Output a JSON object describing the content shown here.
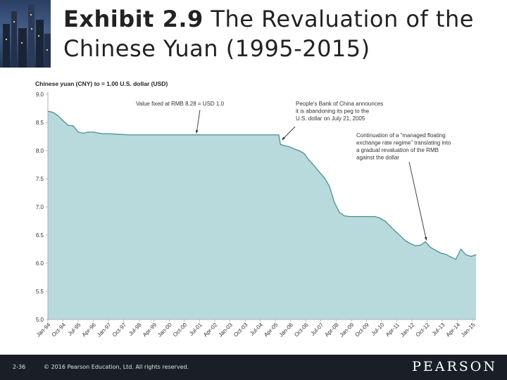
{
  "slide": {
    "title_bold": "Exhibit 2.9",
    "title_rest": "The Revaluation of the Chinese Yuan (1995-2015)",
    "page_number": "2-36",
    "copyright": "© 2016 Pearson Education, Ltd. All rights reserved.",
    "brand": "PEARSON"
  },
  "chart_data": {
    "type": "area",
    "ylabel": "Chinese yuan (CNY) to = 1.00 U.S. dollar (USD)",
    "ylim": [
      5.0,
      9.0
    ],
    "yticks": [
      "9.0",
      "8.5",
      "8.0",
      "7.5",
      "7.0",
      "6.5",
      "6.0",
      "5.5",
      "5.0"
    ],
    "grid": false,
    "fill_color": "#b8dadd",
    "line_color": "#4d8f96",
    "xlabels": [
      "Jan-94",
      "Oct-94",
      "Jul-95",
      "Apr-96",
      "Jan-97",
      "Oct-97",
      "Jul-98",
      "Apr-99",
      "Jan-00",
      "Oct-00",
      "Jul-01",
      "Apr-02",
      "Jan-03",
      "Oct-03",
      "Jul-04",
      "Apr-05",
      "Jan-06",
      "Oct-06",
      "Jul-07",
      "Apr-08",
      "Jan-09",
      "Oct-09",
      "Jul-10",
      "Apr-11",
      "Jan-12",
      "Oct-12",
      "Jul-13",
      "Apr-14",
      "Jan-15"
    ],
    "series": [
      {
        "x": [
          "Jan-94",
          "Apr-94",
          "Jul-94",
          "Oct-94",
          "Jan-95",
          "Apr-95",
          "Jul-95",
          "Oct-95",
          "Jan-96",
          "Apr-96",
          "Jul-96",
          "Oct-96",
          "Jan-97",
          "Jul-97",
          "Jan-98",
          "Jul-98",
          "Jan-99",
          "Jul-99",
          "Jan-00",
          "Jul-00",
          "Jan-01",
          "Jul-01",
          "Jan-02",
          "Jul-02",
          "Jan-03",
          "Jul-03",
          "Jan-04",
          "Jul-04",
          "Jan-05",
          "Jun-05",
          "Jul-05",
          "Sep-05",
          "Dec-05",
          "Mar-06",
          "Jun-06",
          "Sep-06",
          "Dec-06",
          "Mar-07",
          "Jun-07",
          "Sep-07",
          "Dec-07",
          "Mar-08",
          "Jun-08",
          "Sep-08",
          "Dec-08",
          "Mar-09",
          "Jun-09",
          "Sep-09",
          "Dec-09",
          "Mar-10",
          "Jun-10",
          "Sep-10",
          "Dec-10",
          "Mar-11",
          "Jun-11",
          "Sep-11",
          "Dec-11",
          "Mar-12",
          "Jun-12",
          "Sep-12",
          "Dec-12",
          "Mar-13",
          "Jun-13",
          "Sep-13",
          "Dec-13",
          "Mar-14",
          "Jun-14",
          "Sep-14",
          "Dec-14",
          "Mar-15"
        ],
        "values": [
          8.7,
          8.68,
          8.62,
          8.53,
          8.45,
          8.44,
          8.33,
          8.31,
          8.33,
          8.33,
          8.31,
          8.3,
          8.3,
          8.29,
          8.28,
          8.28,
          8.28,
          8.28,
          8.28,
          8.28,
          8.28,
          8.28,
          8.28,
          8.28,
          8.28,
          8.28,
          8.28,
          8.28,
          8.28,
          8.28,
          8.11,
          8.09,
          8.07,
          8.03,
          8.0,
          7.95,
          7.83,
          7.73,
          7.62,
          7.52,
          7.37,
          7.08,
          6.9,
          6.84,
          6.83,
          6.83,
          6.83,
          6.83,
          6.83,
          6.83,
          6.8,
          6.75,
          6.66,
          6.57,
          6.49,
          6.4,
          6.35,
          6.31,
          6.32,
          6.38,
          6.28,
          6.23,
          6.18,
          6.16,
          6.11,
          6.07,
          6.25,
          6.15,
          6.12,
          6.15
        ]
      }
    ],
    "annotations": [
      {
        "text": "Value fixed at RMB 8.28 = USD 1.0",
        "points_to": {
          "x": "Jun-01",
          "y": 8.28
        }
      },
      {
        "lines": [
          "People's Bank of China announces",
          "it is abandoning its peg to the",
          "U.S. dollar on July 21, 2005"
        ],
        "points_to": {
          "x": "Jul-05",
          "y": 8.15
        }
      },
      {
        "lines": [
          "Continuation of a “managed floating",
          "exchange rate regime” translating into",
          "a gradual revaluation of the RMB",
          "against the dollar"
        ],
        "points_to": {
          "x": "Oct-12",
          "y": 6.38
        }
      }
    ]
  }
}
